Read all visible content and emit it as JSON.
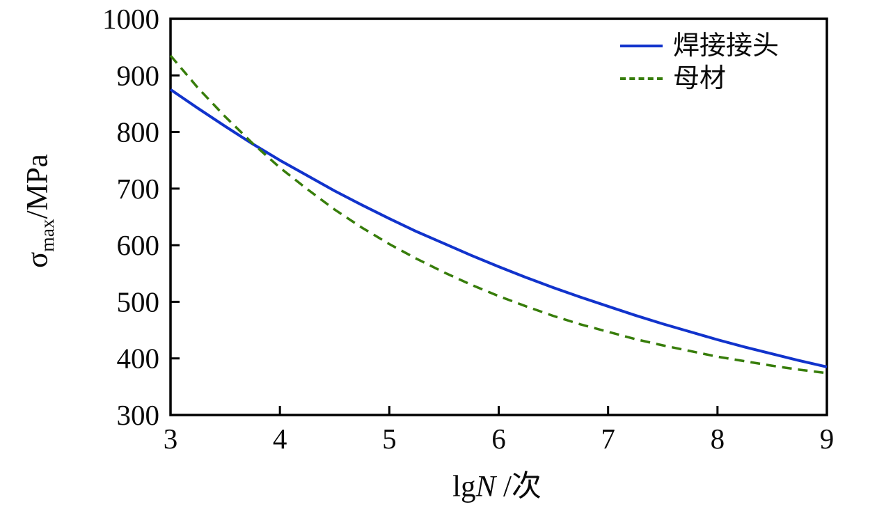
{
  "figure": {
    "background": "#ffffff",
    "frame_color": "#000000",
    "y_axis_title": {
      "sigma": "σ",
      "subscript": "max",
      "unit": "/MPa"
    },
    "x_axis_title": {
      "prefix": "lg",
      "italic": "N",
      "suffix": " /次"
    }
  },
  "chart_data": {
    "type": "line",
    "title": "",
    "xlabel": "lgN /次",
    "ylabel": "σmax/MPa",
    "xlim": [
      3,
      9
    ],
    "ylim": [
      300,
      1000
    ],
    "xticks": [
      3,
      4,
      5,
      6,
      7,
      8,
      9
    ],
    "yticks": [
      300,
      400,
      500,
      600,
      700,
      800,
      900,
      1000
    ],
    "grid": false,
    "legend_position": "top-right",
    "x": [
      3,
      3.25,
      3.5,
      3.75,
      4,
      4.25,
      4.5,
      4.75,
      5,
      5.25,
      5.5,
      5.75,
      6,
      6.25,
      6.5,
      6.75,
      7,
      7.25,
      7.5,
      7.75,
      8,
      8.25,
      8.5,
      8.75,
      9
    ],
    "series": [
      {
        "name": "焊接接头",
        "color": "#1133cc",
        "style": "solid",
        "values": [
          875,
          842,
          810,
          779,
          750,
          723,
          696,
          671,
          647,
          624,
          603,
          582,
          562,
          543,
          525,
          508,
          492,
          476,
          461,
          447,
          433,
          420,
          408,
          396,
          385
        ]
      },
      {
        "name": "母材",
        "color": "#377d0a",
        "style": "dashed",
        "values": [
          935,
          878,
          827,
          780,
          737,
          699,
          663,
          631,
          602,
          576,
          552,
          530,
          510,
          492,
          475,
          460,
          447,
          434,
          423,
          413,
          403,
          395,
          387,
          380,
          374
        ]
      }
    ]
  }
}
